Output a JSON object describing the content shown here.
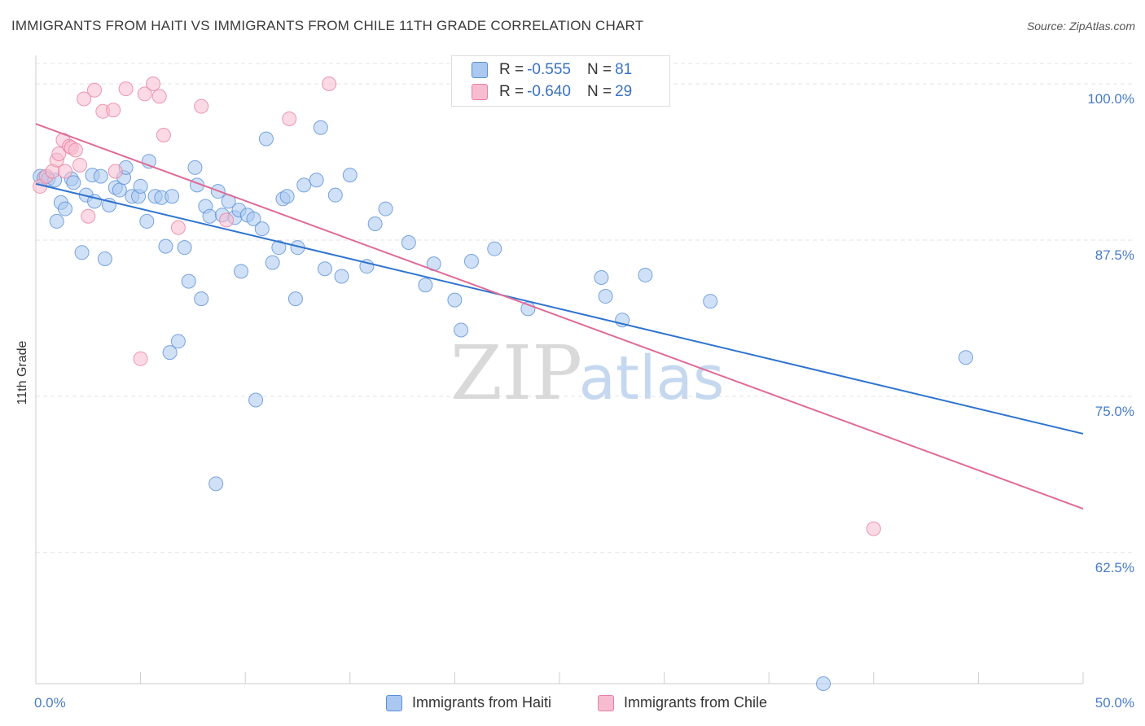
{
  "header": {
    "title": "IMMIGRANTS FROM HAITI VS IMMIGRANTS FROM CHILE 11TH GRADE CORRELATION CHART",
    "source": "Source: ZipAtlas.com"
  },
  "watermark": {
    "zip": "ZIP",
    "atlas": "atlas"
  },
  "legend": {
    "haiti": {
      "r_label": "R =",
      "r_value": "-0.555",
      "n_label": "N =",
      "n_value": "81"
    },
    "chile": {
      "r_label": "R =",
      "r_value": "-0.640",
      "n_label": "N =",
      "n_value": "29"
    }
  },
  "colors": {
    "haiti_fill": "#aac8f0",
    "haiti_stroke": "#5a8fd6",
    "haiti_line": "#2f74d0",
    "chile_fill": "#f8bcd0",
    "chile_stroke": "#e8809f",
    "chile_line": "#e06b98",
    "tick_text": "#4a7cc8",
    "grid": "#e3e3e3"
  },
  "chart_data": {
    "type": "scatter",
    "title": "IMMIGRANTS FROM HAITI VS IMMIGRANTS FROM CHILE 11TH GRADE CORRELATION CHART",
    "xlabel": "",
    "ylabel": "11th Grade",
    "xlim": [
      0,
      50
    ],
    "ylim": [
      52,
      101.5
    ],
    "x_tick_labels": [
      "0.0%",
      "50.0%"
    ],
    "y_ticks": [
      100,
      87.5,
      75,
      62.5
    ],
    "y_tick_labels": [
      "100.0%",
      "87.5%",
      "75.0%",
      "62.5%"
    ],
    "grid": "horizontal dashed",
    "legend_position": "top-center",
    "series": [
      {
        "name": "Immigrants from Haiti",
        "r": -0.555,
        "n": 81,
        "trend": {
          "x": [
            0,
            50
          ],
          "y": [
            92.0,
            72.0
          ]
        },
        "points": [
          [
            0.2,
            92.6
          ],
          [
            0.4,
            92.5
          ],
          [
            0.6,
            92.4
          ],
          [
            0.9,
            92.3
          ],
          [
            1.0,
            89.0
          ],
          [
            1.2,
            90.5
          ],
          [
            1.4,
            90.0
          ],
          [
            1.7,
            92.4
          ],
          [
            1.8,
            92.1
          ],
          [
            2.2,
            86.5
          ],
          [
            2.4,
            91.1
          ],
          [
            2.7,
            92.7
          ],
          [
            2.8,
            90.6
          ],
          [
            3.1,
            92.6
          ],
          [
            3.3,
            86.0
          ],
          [
            3.5,
            90.3
          ],
          [
            3.8,
            91.7
          ],
          [
            4.0,
            91.5
          ],
          [
            4.2,
            92.5
          ],
          [
            4.3,
            93.3
          ],
          [
            4.6,
            91.0
          ],
          [
            4.9,
            91.0
          ],
          [
            5.0,
            91.8
          ],
          [
            5.3,
            89.0
          ],
          [
            5.4,
            93.8
          ],
          [
            5.7,
            91.0
          ],
          [
            6.0,
            90.9
          ],
          [
            6.2,
            87.0
          ],
          [
            6.4,
            78.5
          ],
          [
            6.5,
            91.0
          ],
          [
            6.8,
            79.4
          ],
          [
            7.1,
            86.9
          ],
          [
            7.3,
            84.2
          ],
          [
            7.6,
            93.3
          ],
          [
            7.7,
            91.9
          ],
          [
            7.9,
            82.8
          ],
          [
            8.1,
            90.2
          ],
          [
            8.3,
            89.4
          ],
          [
            8.6,
            68.0
          ],
          [
            8.7,
            91.4
          ],
          [
            8.9,
            89.5
          ],
          [
            9.2,
            90.6
          ],
          [
            9.5,
            89.3
          ],
          [
            9.7,
            89.9
          ],
          [
            9.8,
            85.0
          ],
          [
            10.1,
            89.5
          ],
          [
            10.4,
            89.2
          ],
          [
            10.5,
            74.7
          ],
          [
            10.8,
            88.4
          ],
          [
            11.0,
            95.6
          ],
          [
            11.3,
            85.7
          ],
          [
            11.6,
            86.9
          ],
          [
            11.8,
            90.8
          ],
          [
            12.0,
            91.0
          ],
          [
            12.4,
            82.8
          ],
          [
            12.5,
            86.9
          ],
          [
            12.8,
            91.9
          ],
          [
            13.4,
            92.3
          ],
          [
            13.6,
            96.5
          ],
          [
            13.8,
            85.2
          ],
          [
            14.3,
            91.1
          ],
          [
            14.6,
            84.6
          ],
          [
            15.0,
            92.7
          ],
          [
            15.8,
            85.4
          ],
          [
            16.2,
            88.8
          ],
          [
            16.7,
            90.0
          ],
          [
            17.8,
            87.3
          ],
          [
            18.6,
            83.9
          ],
          [
            19.0,
            85.6
          ],
          [
            20.0,
            82.7
          ],
          [
            20.3,
            80.3
          ],
          [
            20.8,
            85.8
          ],
          [
            21.9,
            86.8
          ],
          [
            23.5,
            82.0
          ],
          [
            27.0,
            84.5
          ],
          [
            27.2,
            83.0
          ],
          [
            28.0,
            81.1
          ],
          [
            29.1,
            84.7
          ],
          [
            32.2,
            82.6
          ],
          [
            44.4,
            78.1
          ],
          [
            37.6,
            52.0
          ]
        ]
      },
      {
        "name": "Immigrants from Chile",
        "r": -0.64,
        "n": 29,
        "trend": {
          "x": [
            0,
            50
          ],
          "y": [
            96.8,
            66.0
          ]
        },
        "points": [
          [
            0.2,
            91.8
          ],
          [
            0.5,
            92.6
          ],
          [
            0.8,
            93.0
          ],
          [
            1.0,
            93.9
          ],
          [
            1.1,
            94.4
          ],
          [
            1.3,
            95.5
          ],
          [
            1.6,
            95.0
          ],
          [
            1.7,
            94.9
          ],
          [
            1.9,
            94.7
          ],
          [
            2.1,
            93.5
          ],
          [
            2.3,
            98.8
          ],
          [
            2.5,
            89.4
          ],
          [
            2.8,
            99.5
          ],
          [
            3.2,
            97.8
          ],
          [
            3.7,
            97.9
          ],
          [
            3.8,
            93.0
          ],
          [
            4.3,
            99.6
          ],
          [
            5.0,
            78.0
          ],
          [
            5.2,
            99.2
          ],
          [
            5.6,
            100.0
          ],
          [
            5.9,
            99.0
          ],
          [
            6.1,
            95.9
          ],
          [
            6.8,
            88.5
          ],
          [
            7.9,
            98.2
          ],
          [
            9.1,
            89.1
          ],
          [
            12.1,
            97.2
          ],
          [
            14.0,
            100.0
          ],
          [
            40.0,
            64.4
          ],
          [
            1.4,
            93.0
          ]
        ]
      }
    ]
  },
  "bottom_legend": {
    "haiti": "Immigrants from Haiti",
    "chile": "Immigrants from Chile"
  }
}
